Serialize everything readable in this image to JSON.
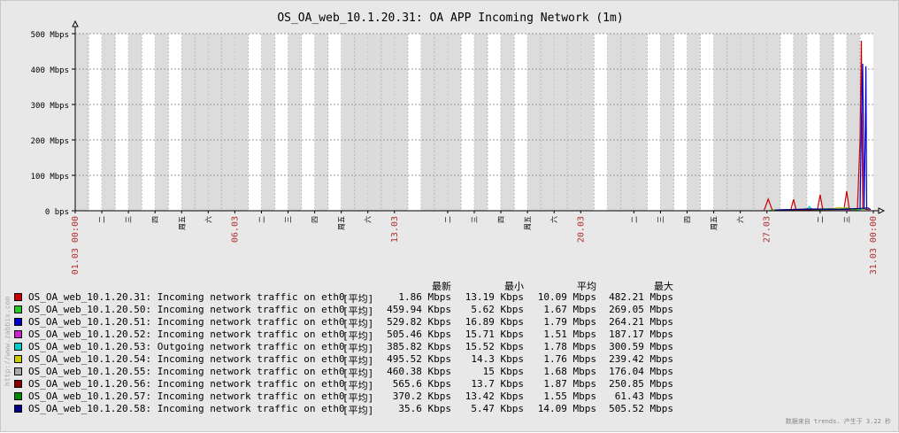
{
  "chart_data": {
    "type": "line",
    "title": "OS_OA_web_10.1.20.31: OA APP Incoming Network (1m)",
    "ylim": [
      0,
      500
    ],
    "y_ticks": [
      "0 bps",
      "100 Mbps",
      "200 Mbps",
      "300 Mbps",
      "400 Mbps",
      "500 Mbps"
    ],
    "x_labels": [
      {
        "text": "01.03 00:00",
        "color": "#b03030",
        "day": 0
      },
      {
        "text": "二",
        "color": "#000000",
        "day": 1
      },
      {
        "text": "三",
        "color": "#000000",
        "day": 2
      },
      {
        "text": "四",
        "color": "#000000",
        "day": 3
      },
      {
        "text": "周五",
        "color": "#000000",
        "day": 4
      },
      {
        "text": "六",
        "color": "#000000",
        "day": 5
      },
      {
        "text": "06.03",
        "color": "#b03030",
        "day": 6
      },
      {
        "text": "二",
        "color": "#000000",
        "day": 7
      },
      {
        "text": "三",
        "color": "#000000",
        "day": 8
      },
      {
        "text": "四",
        "color": "#000000",
        "day": 9
      },
      {
        "text": "周五",
        "color": "#000000",
        "day": 10
      },
      {
        "text": "六",
        "color": "#000000",
        "day": 11
      },
      {
        "text": "13.03",
        "color": "#b03030",
        "day": 12
      },
      {
        "text": "二",
        "color": "#000000",
        "day": 14
      },
      {
        "text": "三",
        "color": "#000000",
        "day": 15
      },
      {
        "text": "四",
        "color": "#000000",
        "day": 16
      },
      {
        "text": "周五",
        "color": "#000000",
        "day": 17
      },
      {
        "text": "六",
        "color": "#000000",
        "day": 18
      },
      {
        "text": "20.03",
        "color": "#b03030",
        "day": 19
      },
      {
        "text": "二",
        "color": "#000000",
        "day": 21
      },
      {
        "text": "三",
        "color": "#000000",
        "day": 22
      },
      {
        "text": "四",
        "color": "#000000",
        "day": 23
      },
      {
        "text": "周五",
        "color": "#000000",
        "day": 24
      },
      {
        "text": "六",
        "color": "#000000",
        "day": 25
      },
      {
        "text": "27.03",
        "color": "#b03030",
        "day": 26
      },
      {
        "text": "二",
        "color": "#000000",
        "day": 28
      },
      {
        "text": "三",
        "color": "#000000",
        "day": 29
      },
      {
        "text": "31.03 00:00",
        "color": "#b03030",
        "day": 30
      }
    ],
    "gray_days": [
      [
        0,
        0.5
      ],
      [
        1,
        1.5
      ],
      [
        2,
        2.5
      ],
      [
        3,
        3.5
      ],
      [
        4,
        6
      ],
      [
        6,
        6.5
      ],
      [
        7,
        7.5
      ],
      [
        8,
        8.5
      ],
      [
        9,
        9.5
      ],
      [
        10,
        12
      ],
      [
        12,
        12.5
      ],
      [
        13,
        14
      ],
      [
        14,
        14.5
      ],
      [
        15,
        15.5
      ],
      [
        16,
        16.5
      ],
      [
        17,
        19
      ],
      [
        19,
        19.5
      ],
      [
        20,
        21
      ],
      [
        21,
        21.5
      ],
      [
        22,
        22.5
      ],
      [
        23,
        23.5
      ],
      [
        24,
        26
      ],
      [
        26,
        26.5
      ],
      [
        27,
        27.5
      ],
      [
        28,
        28.5
      ],
      [
        29,
        29.5
      ]
    ],
    "x_range_days": [
      0,
      30
    ],
    "series": [
      {
        "name": "OS_OA_web_10.1.20.31: Incoming network traffic on eth0",
        "color": "#cc0000",
        "points": [
          [
            25.9,
            2
          ],
          [
            26.05,
            33
          ],
          [
            26.2,
            2
          ],
          [
            26.9,
            3
          ],
          [
            27.0,
            32
          ],
          [
            27.1,
            2
          ],
          [
            27.9,
            4
          ],
          [
            28.0,
            45
          ],
          [
            28.1,
            3
          ],
          [
            28.9,
            4
          ],
          [
            29.0,
            55
          ],
          [
            29.1,
            3
          ],
          [
            29.4,
            4
          ],
          [
            29.5,
            200
          ],
          [
            29.55,
            480
          ],
          [
            29.6,
            5
          ],
          [
            29.85,
            3
          ]
        ]
      },
      {
        "name": "OS_OA_web_10.1.20.50: Incoming network traffic on eth0",
        "color": "#22cc22",
        "points": [
          [
            26.1,
            1
          ],
          [
            26.6,
            3
          ],
          [
            27.3,
            2
          ],
          [
            28.4,
            6
          ],
          [
            28.6,
            3
          ],
          [
            29.0,
            8
          ],
          [
            29.3,
            2
          ],
          [
            29.7,
            5
          ]
        ]
      },
      {
        "name": "OS_OA_web_10.1.20.51: Incoming network traffic on eth0",
        "color": "#0000cc",
        "points": [
          [
            29.5,
            3
          ],
          [
            29.55,
            250
          ],
          [
            29.6,
            415
          ],
          [
            29.65,
            5
          ],
          [
            29.7,
            240
          ],
          [
            29.72,
            408
          ],
          [
            29.75,
            4
          ]
        ]
      },
      {
        "name": "OS_OA_web_10.1.20.52: Incoming network traffic on eth0",
        "color": "#cc22cc",
        "points": [
          [
            27.2,
            2
          ],
          [
            28.2,
            4
          ],
          [
            29.1,
            3
          ]
        ]
      },
      {
        "name": "OS_OA_web_10.1.20.53: Outgoing network traffic on eth0",
        "color": "#00cccc",
        "points": [
          [
            27.5,
            4
          ],
          [
            27.6,
            12
          ],
          [
            27.7,
            3
          ],
          [
            28.5,
            5
          ]
        ]
      },
      {
        "name": "OS_OA_web_10.1.20.54: Incoming network traffic on eth0",
        "color": "#cccc00",
        "points": [
          [
            28.3,
            3
          ],
          [
            28.7,
            9
          ],
          [
            29.2,
            4
          ]
        ]
      },
      {
        "name": "OS_OA_web_10.1.20.55: Incoming network traffic on eth0",
        "color": "#aaaaaa",
        "points": [
          [
            27.4,
            2
          ],
          [
            28.8,
            3
          ]
        ]
      },
      {
        "name": "OS_OA_web_10.1.20.56: Incoming network traffic on eth0",
        "color": "#880000",
        "points": [
          [
            26.4,
            2
          ],
          [
            28.95,
            4
          ]
        ]
      },
      {
        "name": "OS_OA_web_10.1.20.57: Incoming network traffic on eth0",
        "color": "#008800",
        "points": [
          [
            27.8,
            3
          ],
          [
            29.3,
            6
          ]
        ]
      },
      {
        "name": "OS_OA_web_10.1.20.58: Incoming network traffic on eth0",
        "color": "#000088",
        "points": [
          [
            26.3,
            2
          ],
          [
            27.6,
            5
          ],
          [
            28.9,
            4
          ],
          [
            29.8,
            8
          ],
          [
            29.9,
            3
          ]
        ]
      }
    ]
  },
  "legend": {
    "headers": {
      "last": "最新",
      "min": "最小",
      "avg": "平均",
      "max": "最大"
    },
    "rows": [
      {
        "color": "#cc0000",
        "name": "OS_OA_web_10.1.20.31: Incoming network traffic on eth0",
        "fn": "[平均]",
        "last": "1.86 Mbps",
        "min": "13.19 Kbps",
        "avg": "10.09 Mbps",
        "max": "482.21 Mbps"
      },
      {
        "color": "#22cc22",
        "name": "OS_OA_web_10.1.20.50: Incoming network traffic on eth0",
        "fn": "[平均]",
        "last": "459.94 Kbps",
        "min": "5.62 Kbps",
        "avg": "1.67 Mbps",
        "max": "269.05 Mbps"
      },
      {
        "color": "#0000cc",
        "name": "OS_OA_web_10.1.20.51: Incoming network traffic on eth0",
        "fn": "[平均]",
        "last": "529.82 Kbps",
        "min": "16.89 Kbps",
        "avg": "1.79 Mbps",
        "max": "264.21 Mbps"
      },
      {
        "color": "#cc22cc",
        "name": "OS_OA_web_10.1.20.52: Incoming network traffic on eth0",
        "fn": "[平均]",
        "last": "505.46 Kbps",
        "min": "15.71 Kbps",
        "avg": "1.51 Mbps",
        "max": "187.17 Mbps"
      },
      {
        "color": "#00cccc",
        "name": "OS_OA_web_10.1.20.53: Outgoing network traffic on eth0",
        "fn": "[平均]",
        "last": "385.82 Kbps",
        "min": "15.52 Kbps",
        "avg": "1.78 Mbps",
        "max": "300.59 Mbps"
      },
      {
        "color": "#cccc00",
        "name": "OS_OA_web_10.1.20.54: Incoming network traffic on eth0",
        "fn": "[平均]",
        "last": "495.52 Kbps",
        "min": "14.3 Kbps",
        "avg": "1.76 Mbps",
        "max": "239.42 Mbps"
      },
      {
        "color": "#aaaaaa",
        "name": "OS_OA_web_10.1.20.55: Incoming network traffic on eth0",
        "fn": "[平均]",
        "last": "460.38 Kbps",
        "min": "15 Kbps",
        "avg": "1.68 Mbps",
        "max": "176.04 Mbps"
      },
      {
        "color": "#880000",
        "name": "OS_OA_web_10.1.20.56: Incoming network traffic on eth0",
        "fn": "[平均]",
        "last": "565.6 Kbps",
        "min": "13.7 Kbps",
        "avg": "1.87 Mbps",
        "max": "250.85 Mbps"
      },
      {
        "color": "#008800",
        "name": "OS_OA_web_10.1.20.57: Incoming network traffic on eth0",
        "fn": "[平均]",
        "last": "370.2 Kbps",
        "min": "13.42 Kbps",
        "avg": "1.55 Mbps",
        "max": "61.43 Mbps"
      },
      {
        "color": "#000088",
        "name": "OS_OA_web_10.1.20.58: Incoming network traffic on eth0",
        "fn": "[平均]",
        "last": "35.6 Kbps",
        "min": "5.47 Kbps",
        "avg": "14.09 Mbps",
        "max": "505.52 Mbps"
      }
    ]
  },
  "footer": "数据来自 trends. 产生于 3.22 秒",
  "watermark": "http://www.zabbix.com"
}
